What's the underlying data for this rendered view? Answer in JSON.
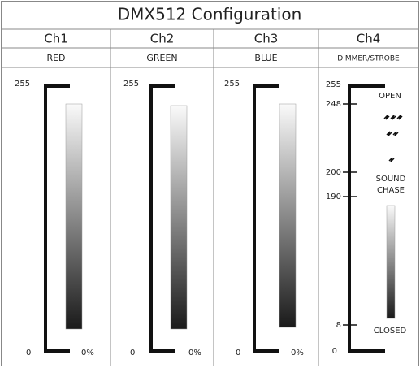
{
  "title": "DMX512 Configuration",
  "channels": [
    {
      "name": "Ch1",
      "label": "RED",
      "max": 255,
      "min": 0,
      "min_percent": "0%"
    },
    {
      "name": "Ch2",
      "label": "GREEN",
      "max": 255,
      "min": 0,
      "min_percent": "0%"
    },
    {
      "name": "Ch3",
      "label": "BLUE",
      "max": 255,
      "min": 0,
      "min_percent": "0%"
    },
    {
      "name": "Ch4",
      "label": "DIMMER/STROBE",
      "scale": [
        255,
        248,
        200,
        190,
        8,
        0
      ],
      "zones": [
        "OPEN",
        "SOUND CHASE",
        "CLOSED"
      ]
    }
  ]
}
